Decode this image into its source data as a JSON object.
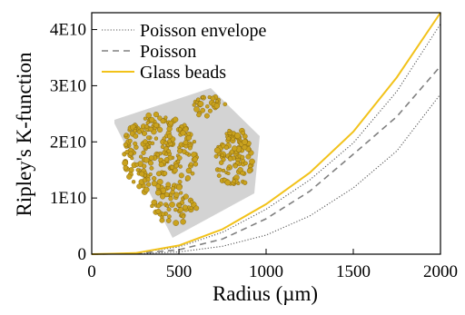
{
  "chart_data": {
    "type": "line",
    "xlabel": "Radius (µm)",
    "ylabel": "Ripley's K-function",
    "xlim": [
      0,
      2000
    ],
    "ylim": [
      0,
      43000000000
    ],
    "x_ticks": [
      0,
      500,
      1000,
      1500,
      2000
    ],
    "x_tick_labels": [
      "0",
      "500",
      "1000",
      "1500",
      "2000"
    ],
    "y_ticks": [
      0,
      10000000000,
      20000000000,
      30000000000,
      40000000000
    ],
    "y_tick_labels": [
      "0",
      "1E10",
      "2E10",
      "3E10",
      "4E10"
    ],
    "grid": false,
    "legend_position": "top-left",
    "x": [
      0,
      250,
      500,
      750,
      1000,
      1250,
      1500,
      1750,
      2000
    ],
    "series": [
      {
        "name": "Poisson envelope",
        "style": "dotted",
        "color": "#555555",
        "values": [
          0,
          190000000,
          1300000000,
          3900000000,
          8000000000,
          13200000000,
          19800000000,
          29000000000,
          41000000000
        ],
        "lower_values": [
          0,
          60000000,
          400000000,
          1400000000,
          3400000000,
          6800000000,
          11800000000,
          18400000000,
          28500000000
        ]
      },
      {
        "name": "Poisson",
        "style": "dashed",
        "color": "#808080",
        "values": [
          0,
          100000000,
          800000000,
          2700000000,
          6300000000,
          11200000000,
          17800000000,
          24500000000,
          33500000000
        ]
      },
      {
        "name": "Glass beads",
        "style": "solid",
        "color": "#F2C21A",
        "values": [
          0,
          200000000,
          1550000000,
          4450000000,
          8900000000,
          14500000000,
          21800000000,
          31500000000,
          43000000000
        ]
      }
    ]
  },
  "inset": {
    "panel_color": "#d3d3d3",
    "bead_color": "#C9A21E",
    "bead_outline": "#7a5c0a"
  }
}
